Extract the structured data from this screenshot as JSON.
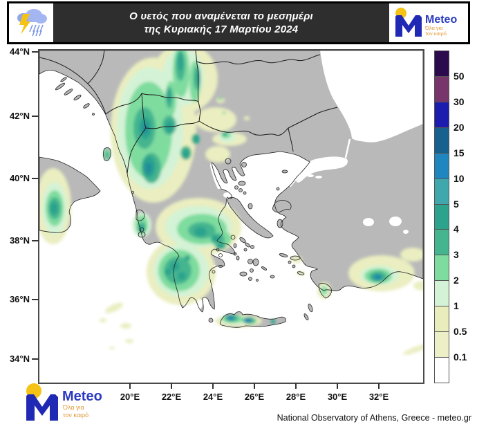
{
  "header": {
    "title_line1": "Ο υετός που αναμένεται το μεσημέρι",
    "title_line2": "της Κυριακής 17 Μαρτίου 2024",
    "bg_color": "#2e2e2e"
  },
  "brand": {
    "name": "Meteo",
    "tagline_line1": "Όλα για",
    "tagline_line2": "τον καιρό",
    "blue": "#2029b4",
    "yellow": "#f5c216",
    "tagline_color": "#e0993a"
  },
  "axes": {
    "lat_labels": [
      "44°N",
      "42°N",
      "40°N",
      "38°N",
      "36°N",
      "34°N"
    ],
    "lon_labels": [
      "20°E",
      "22°E",
      "24°E",
      "26°E",
      "28°E",
      "30°E",
      "32°E"
    ]
  },
  "legend": {
    "labels": [
      "50",
      "30",
      "20",
      "15",
      "10",
      "5",
      "4",
      "3",
      "2",
      "1",
      "0.5",
      "0.1"
    ],
    "colors": [
      "#2b0b4e",
      "#77356b",
      "#1c1cae",
      "#17618f",
      "#2086bf",
      "#40a8ad",
      "#2ba38d",
      "#45b58f",
      "#7edc9f",
      "#d4f3d6",
      "#e9edbb",
      "#edf0c6",
      "#ffffff"
    ]
  },
  "map": {
    "land_color": "#b9b9b9",
    "sea_color": "#ffffff"
  },
  "footer": {
    "credit": "National Observatory of Athens, Greece - meteo.gr"
  }
}
